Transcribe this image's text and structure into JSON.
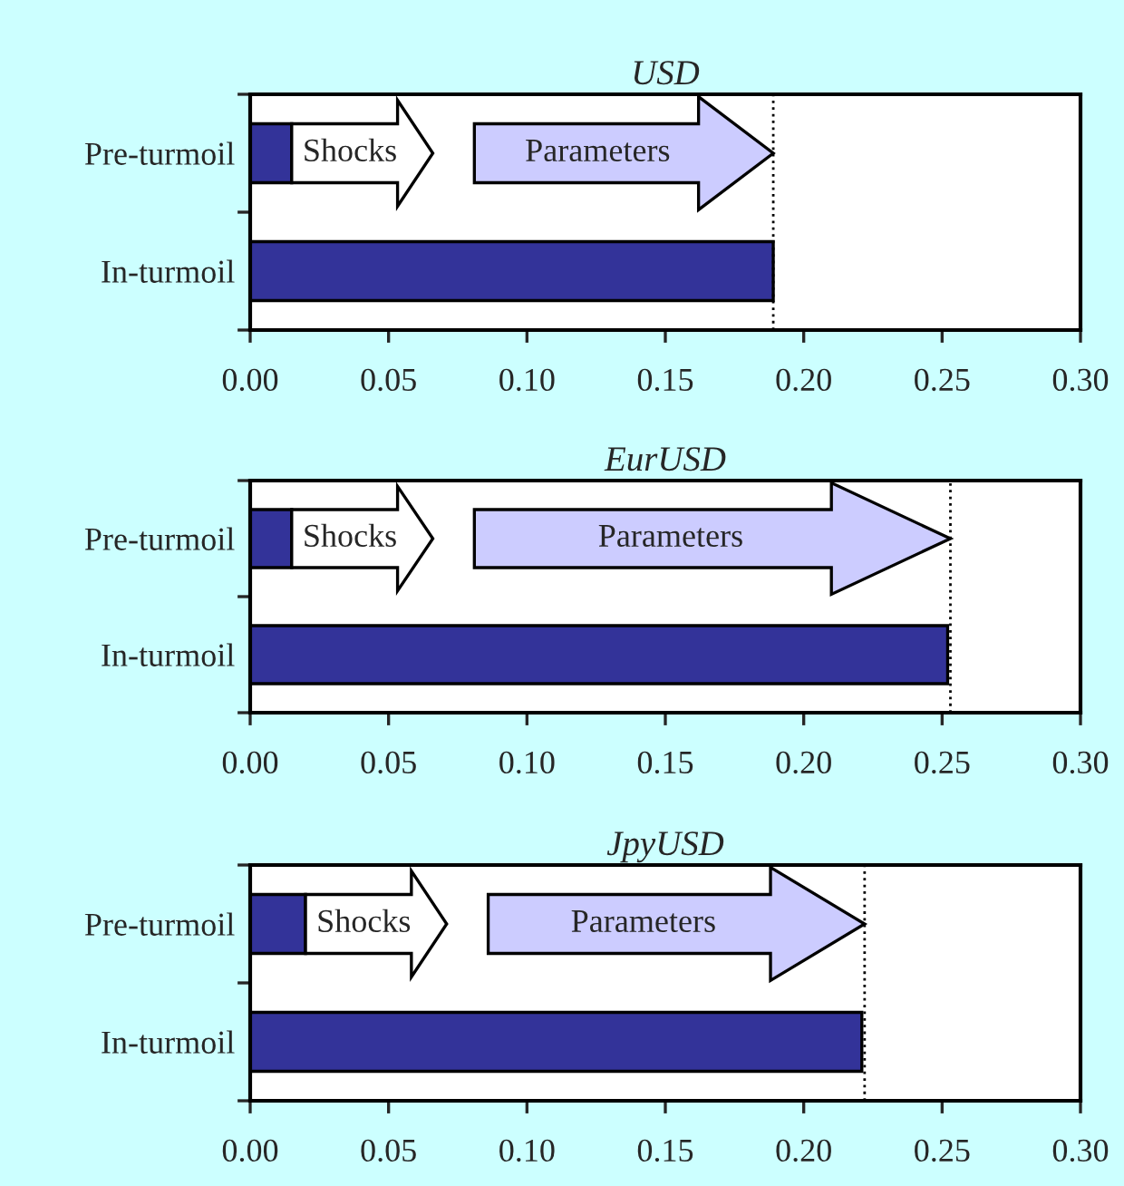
{
  "chart_data": [
    {
      "type": "bar",
      "orientation": "horizontal",
      "title": "USD",
      "categories": [
        "Pre-turmoil",
        "In-turmoil"
      ],
      "values": [
        0.015,
        0.189
      ],
      "color": "#333399",
      "xlim": [
        0,
        0.3
      ],
      "xticks": [
        {
          "value": 0,
          "label": "0.00"
        },
        {
          "value": 0.05,
          "label": "0.05"
        },
        {
          "value": 0.1,
          "label": "0.10"
        },
        {
          "value": 0.15,
          "label": "0.15"
        },
        {
          "value": 0.2,
          "label": "0.20"
        },
        {
          "value": 0.25,
          "label": "0.25"
        },
        {
          "value": 0.3,
          "label": "0.30"
        }
      ],
      "ref_lines": [
        {
          "axis": "x",
          "value": 0.189,
          "line_style": "dotted"
        }
      ],
      "annotations": [
        "Shocks",
        "Parameters"
      ]
    },
    {
      "type": "bar",
      "orientation": "horizontal",
      "title": "EurUSD",
      "categories": [
        "Pre-turmoil",
        "In-turmoil"
      ],
      "values": [
        0.015,
        0.252
      ],
      "color": "#333399",
      "xlim": [
        0,
        0.3
      ],
      "xticks": [
        {
          "value": 0,
          "label": "0.00"
        },
        {
          "value": 0.05,
          "label": "0.05"
        },
        {
          "value": 0.1,
          "label": "0.10"
        },
        {
          "value": 0.15,
          "label": "0.15"
        },
        {
          "value": 0.2,
          "label": "0.20"
        },
        {
          "value": 0.25,
          "label": "0.25"
        },
        {
          "value": 0.3,
          "label": "0.30"
        }
      ],
      "ref_lines": [
        {
          "axis": "x",
          "value": 0.253,
          "line_style": "dotted"
        }
      ],
      "annotations": [
        "Shocks",
        "Parameters"
      ]
    },
    {
      "type": "bar",
      "orientation": "horizontal",
      "title": "JpyUSD",
      "categories": [
        "Pre-turmoil",
        "In-turmoil"
      ],
      "values": [
        0.02,
        0.221
      ],
      "color": "#333399",
      "xlim": [
        0,
        0.3
      ],
      "xticks": [
        {
          "value": 0,
          "label": "0.00"
        },
        {
          "value": 0.05,
          "label": "0.05"
        },
        {
          "value": 0.1,
          "label": "0.10"
        },
        {
          "value": 0.15,
          "label": "0.15"
        },
        {
          "value": 0.2,
          "label": "0.20"
        },
        {
          "value": 0.25,
          "label": "0.25"
        },
        {
          "value": 0.3,
          "label": "0.30"
        }
      ],
      "ref_lines": [
        {
          "axis": "x",
          "value": 0.222,
          "line_style": "dotted"
        }
      ],
      "annotations": [
        "Shocks",
        "Parameters"
      ]
    }
  ]
}
